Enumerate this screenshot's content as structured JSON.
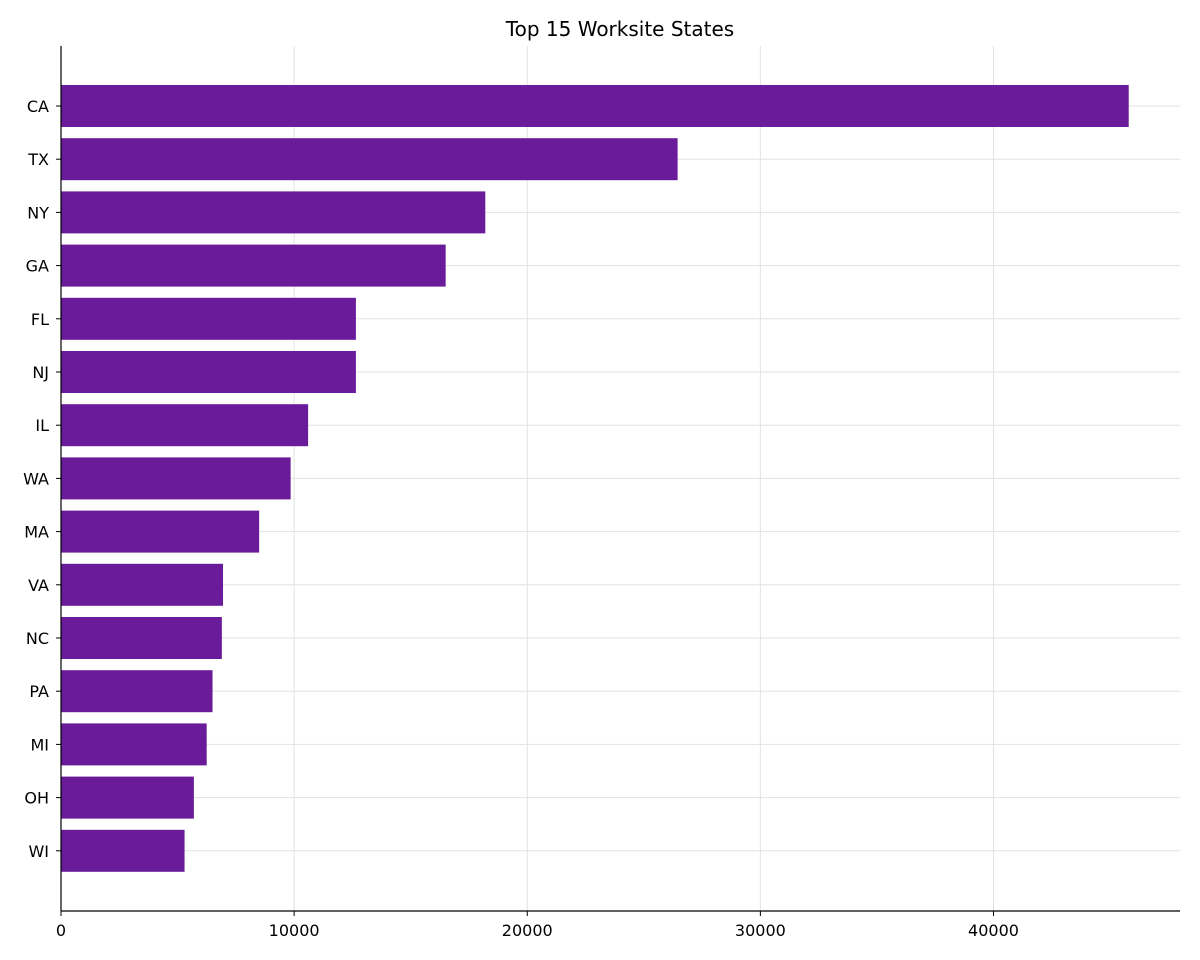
{
  "chart_data": {
    "type": "bar",
    "orientation": "horizontal",
    "title": "Top 15 Worksite States",
    "xlabel": "",
    "ylabel": "",
    "categories": [
      "CA",
      "TX",
      "NY",
      "GA",
      "FL",
      "NJ",
      "IL",
      "WA",
      "MA",
      "VA",
      "NC",
      "PA",
      "MI",
      "OH",
      "WI"
    ],
    "values": [
      45800,
      26450,
      18200,
      16500,
      12650,
      12650,
      10600,
      9850,
      8500,
      6950,
      6900,
      6500,
      6250,
      5700,
      5300
    ],
    "xlim": [
      0,
      48000
    ],
    "xticks": [
      0,
      10000,
      20000,
      30000,
      40000
    ],
    "xtick_labels": [
      "0",
      "10000",
      "20000",
      "30000",
      "40000"
    ],
    "bar_color": "#6a1b9a",
    "grid": true,
    "legend": "none"
  }
}
